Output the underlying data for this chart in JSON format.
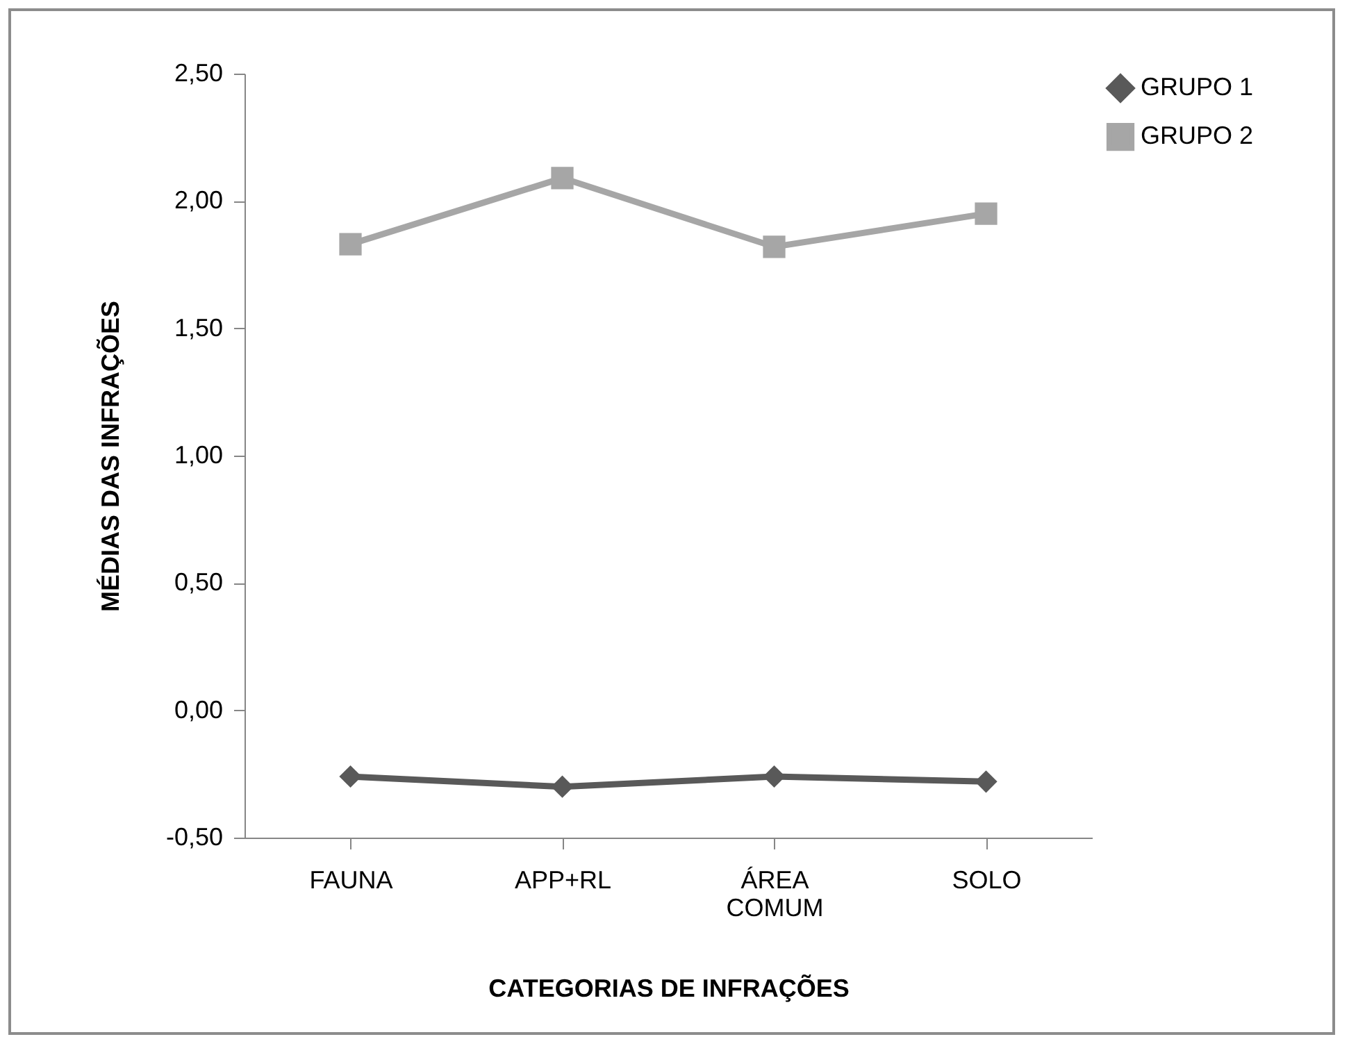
{
  "chart_data": {
    "type": "line",
    "xlabel": "CATEGORIAS DE INFRAÇÕES",
    "ylabel": "MÉDIAS DAS INFRAÇÕES",
    "categories": [
      "FAUNA",
      "APP+RL",
      "ÁREA COMUM",
      "SOLO"
    ],
    "series": [
      {
        "name": "GRUPO 1",
        "color": "#595959",
        "marker": "diamond",
        "values": [
          -0.26,
          -0.3,
          -0.26,
          -0.28
        ]
      },
      {
        "name": "GRUPO 2",
        "color": "#a6a6a6",
        "marker": "square",
        "values": [
          1.83,
          2.09,
          1.82,
          1.95
        ]
      }
    ],
    "ylim": [
      -0.5,
      2.5
    ],
    "yticks": [
      {
        "value": -0.5,
        "label": "-0,50"
      },
      {
        "value": 0,
        "label": "0,00"
      },
      {
        "value": 0.5,
        "label": "0,50"
      },
      {
        "value": 1,
        "label": "1,00"
      },
      {
        "value": 1.5,
        "label": "1,50"
      },
      {
        "value": 2,
        "label": "2,00"
      },
      {
        "value": 2.5,
        "label": "2,50"
      }
    ],
    "grid": false,
    "legend": "right",
    "line_style": "solid"
  }
}
